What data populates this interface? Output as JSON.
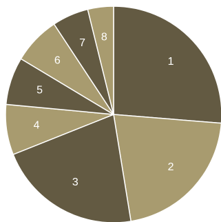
{
  "chart_data": {
    "type": "pie",
    "title": "",
    "start_angle_deg": 90,
    "direction": "clockwise",
    "colors": {
      "dark": "#635a42",
      "light": "#a89b6f",
      "separator": "#ffffff",
      "label_text": "#ffffff"
    },
    "slices": [
      {
        "label": "1",
        "value": 26.6,
        "color": "#635a42"
      },
      {
        "label": "2",
        "value": 21.4,
        "color": "#a89b6f"
      },
      {
        "label": "3",
        "value": 21.8,
        "color": "#635a42"
      },
      {
        "label": "4",
        "value": 7.6,
        "color": "#a89b6f"
      },
      {
        "label": "5",
        "value": 7.2,
        "color": "#635a42"
      },
      {
        "label": "6",
        "value": 7.2,
        "color": "#a89b6f"
      },
      {
        "label": "7",
        "value": 5.5,
        "color": "#635a42"
      },
      {
        "label": "8",
        "value": 3.9,
        "color": "#a89b6f"
      }
    ]
  }
}
